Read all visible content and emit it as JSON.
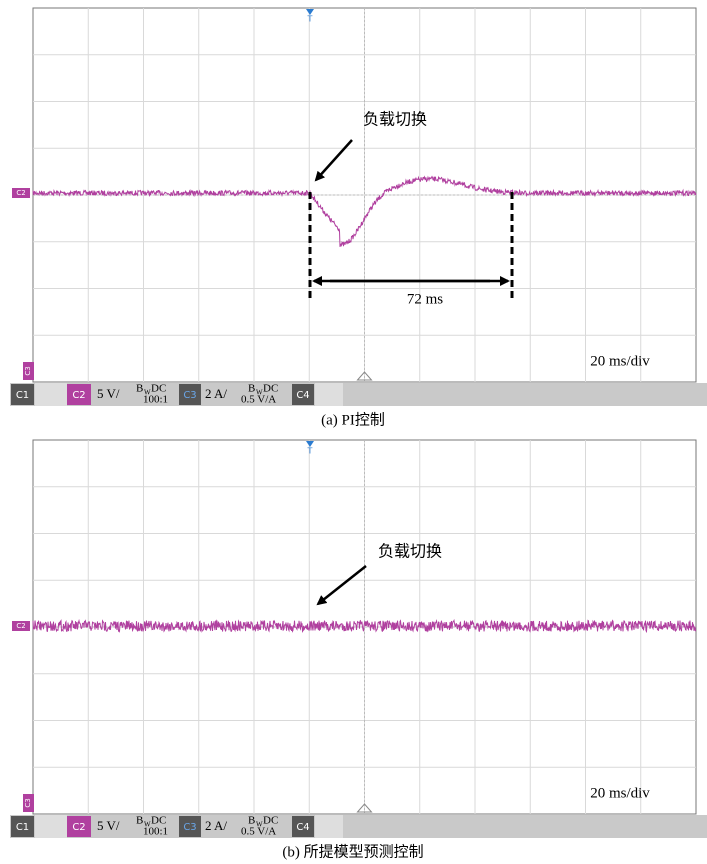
{
  "panels": [
    {
      "annotation": "负载切换",
      "duration": "72 ms",
      "timebase": "20 ms/div",
      "channel_marker": "C2",
      "ground_marker": "C3",
      "trigger": "T",
      "status": {
        "c1": "C1",
        "c2": "C2",
        "c2_scale": "5 V/",
        "c2_b": "B",
        "c2_w": "W",
        "c2_dc": "DC",
        "c2_probe": "100:1",
        "c3": "C3",
        "c3_scale": "2 A/",
        "c3_b": "B",
        "c3_w": "W",
        "c3_dc": "DC",
        "c3_probe": "0.5 V/A",
        "c4": "C4"
      },
      "caption": "(a) PI控制"
    },
    {
      "annotation": "负载切换",
      "timebase": "20 ms/div",
      "channel_marker": "C2",
      "ground_marker": "C3",
      "trigger": "T",
      "status": {
        "c1": "C1",
        "c2": "C2",
        "c2_scale": "5 V/",
        "c2_b": "B",
        "c2_w": "W",
        "c2_dc": "DC",
        "c2_probe": "100:1",
        "c3": "C3",
        "c3_scale": "2 A/",
        "c3_b": "B",
        "c3_w": "W",
        "c3_dc": "DC",
        "c3_probe": "0.5 V/A",
        "c4": "C4"
      },
      "caption": "(b) 所提模型预测控制"
    }
  ]
}
